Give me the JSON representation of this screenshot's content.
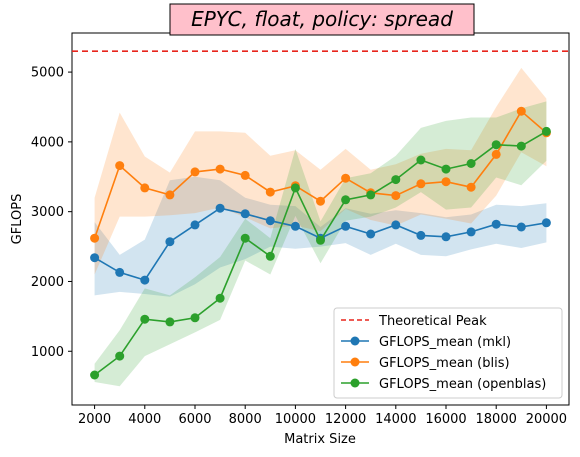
{
  "chart_data": {
    "type": "line",
    "title": "EPYC, float, policy: spread",
    "xlabel": "Matrix Size",
    "ylabel": "GFLOPS",
    "xlim": [
      1100,
      20900
    ],
    "ylim": [
      230,
      5560
    ],
    "xticks": [
      2000,
      4000,
      6000,
      8000,
      10000,
      12000,
      14000,
      16000,
      18000,
      20000
    ],
    "yticks": [
      1000,
      2000,
      3000,
      4000,
      5000
    ],
    "grid": false,
    "legend_position": "lower-right",
    "reference_line": {
      "name": "Theoretical Peak",
      "value": 5300,
      "color": "#e8251c",
      "style": "dashed"
    },
    "x": [
      2000,
      3000,
      4000,
      5000,
      6000,
      7000,
      8000,
      9000,
      10000,
      11000,
      12000,
      13000,
      14000,
      15000,
      16000,
      17000,
      18000,
      19000,
      20000
    ],
    "series": [
      {
        "name": "GFLOPS_mean (mkl)",
        "color": "#1f77b4",
        "values": [
          2340,
          2130,
          2020,
          2570,
          2810,
          3050,
          2970,
          2870,
          2790,
          2620,
          2790,
          2680,
          2810,
          2660,
          2640,
          2710,
          2820,
          2780,
          2840
        ],
        "band_upper": [
          2850,
          2380,
          2600,
          3450,
          3500,
          3450,
          3200,
          3100,
          3080,
          2780,
          3050,
          2970,
          3020,
          2980,
          2920,
          2960,
          3100,
          3080,
          3120
        ],
        "band_lower": [
          1800,
          1850,
          1820,
          1780,
          1960,
          2200,
          2320,
          2500,
          2470,
          2500,
          2550,
          2380,
          2540,
          2380,
          2360,
          2460,
          2540,
          2480,
          2560
        ]
      },
      {
        "name": "GFLOPS_mean (blis)",
        "color": "#ff7f0e",
        "values": [
          2620,
          3660,
          3340,
          3240,
          3570,
          3610,
          3520,
          3280,
          3370,
          3150,
          3480,
          3270,
          3230,
          3400,
          3430,
          3350,
          3820,
          4440,
          4130
        ],
        "band_upper": [
          3200,
          4420,
          3790,
          3560,
          4150,
          4150,
          4130,
          3800,
          3880,
          3600,
          3900,
          3600,
          3680,
          3830,
          3900,
          3880,
          4500,
          5060,
          4620
        ],
        "band_lower": [
          2100,
          2930,
          2930,
          2950,
          2980,
          3060,
          2920,
          2760,
          2800,
          2720,
          3040,
          2880,
          2800,
          2960,
          2900,
          2830,
          3230,
          3850,
          3650
        ]
      },
      {
        "name": "GFLOPS_mean (openblas)",
        "color": "#2ca02c",
        "values": [
          660,
          930,
          1460,
          1420,
          1480,
          1760,
          2620,
          2360,
          3340,
          2590,
          3170,
          3240,
          3460,
          3740,
          3610,
          3690,
          3960,
          3940,
          4150
        ],
        "band_upper": [
          820,
          1300,
          1900,
          1800,
          2060,
          2350,
          2900,
          2620,
          3900,
          2860,
          3480,
          3550,
          3800,
          4200,
          4300,
          4350,
          4350,
          4480,
          4580
        ],
        "band_lower": [
          560,
          500,
          930,
          1100,
          1270,
          1450,
          2300,
          2100,
          2940,
          2260,
          2870,
          2930,
          3060,
          3280,
          3030,
          3060,
          3490,
          3380,
          3730
        ]
      }
    ]
  }
}
